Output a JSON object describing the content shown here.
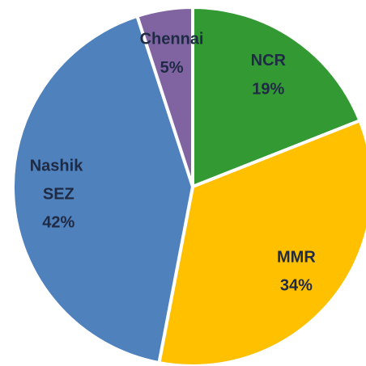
{
  "chart_data": {
    "type": "pie",
    "categories": [
      "NCR",
      "MMR",
      "Nashik SEZ",
      "Chennai"
    ],
    "values": [
      19,
      34,
      42,
      5
    ],
    "value_labels": [
      "19%",
      "34%",
      "42%",
      "5%"
    ],
    "colors": [
      "#339933",
      "#ffc000",
      "#4f81bd",
      "#8064a2"
    ]
  }
}
